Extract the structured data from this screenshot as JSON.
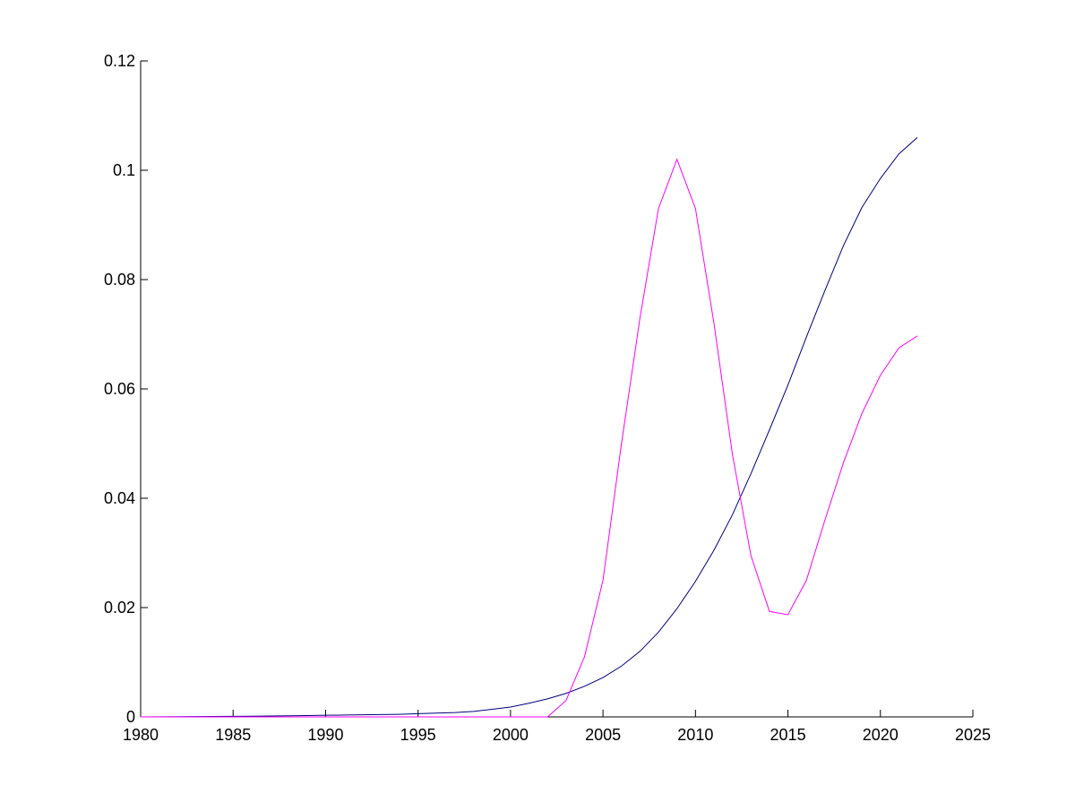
{
  "chart_data": {
    "type": "line",
    "x": [
      1980,
      1981,
      1982,
      1983,
      1984,
      1985,
      1986,
      1987,
      1988,
      1989,
      1990,
      1991,
      1992,
      1993,
      1994,
      1995,
      1996,
      1997,
      1998,
      1999,
      2000,
      2001,
      2002,
      2003,
      2004,
      2005,
      2006,
      2007,
      2008,
      2009,
      2010,
      2011,
      2012,
      2013,
      2014,
      2015,
      2016,
      2017,
      2018,
      2019,
      2020,
      2021,
      2022
    ],
    "series": [
      {
        "color": "#00007f",
        "values": [
          0,
          2e-05,
          4e-05,
          6e-05,
          8e-05,
          0.0001,
          0.00013,
          0.00017,
          0.00021,
          0.00025,
          0.0003,
          0.00034,
          0.00038,
          0.00043,
          0.00048,
          0.0006,
          0.0007,
          0.0008,
          0.001,
          0.0014,
          0.0018,
          0.0025,
          0.0033,
          0.0043,
          0.0056,
          0.0072,
          0.0093,
          0.012,
          0.0155,
          0.0198,
          0.0248,
          0.0305,
          0.037,
          0.0445,
          0.0525,
          0.0607,
          0.0695,
          0.078,
          0.0862,
          0.0932,
          0.0985,
          0.103,
          0.106
        ]
      },
      {
        "color": "#ff00ff",
        "values": [
          0,
          0,
          0,
          0,
          0,
          0,
          0,
          0,
          0,
          0,
          0,
          0,
          0,
          0,
          0,
          0,
          0,
          0,
          0,
          0,
          0,
          0,
          0,
          0.003,
          0.011,
          0.025,
          0.05,
          0.073,
          0.093,
          0.102,
          0.093,
          0.072,
          0.048,
          0.0295,
          0.0193,
          0.0187,
          0.025,
          0.036,
          0.0465,
          0.0555,
          0.0625,
          0.0675,
          0.0697
        ]
      }
    ],
    "xlim": [
      1980,
      2025
    ],
    "xticks": [
      1980,
      1985,
      1990,
      1995,
      2000,
      2005,
      2010,
      2015,
      2020,
      2025
    ],
    "ylim": [
      0,
      0.12
    ],
    "yticks": [
      0,
      0.02,
      0.04,
      0.06,
      0.08,
      0.1,
      0.12
    ]
  }
}
